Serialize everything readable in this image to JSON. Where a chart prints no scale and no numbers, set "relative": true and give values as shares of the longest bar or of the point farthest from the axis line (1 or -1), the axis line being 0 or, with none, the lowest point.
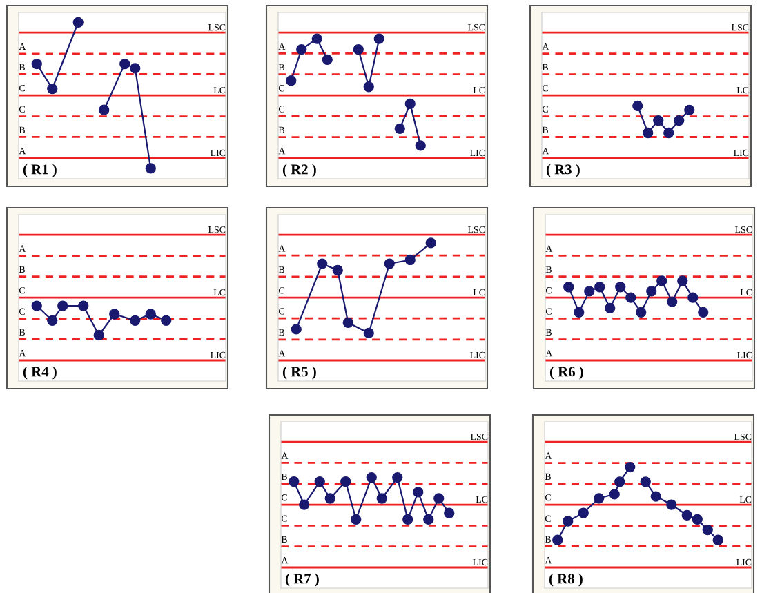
{
  "chart_data": [
    {
      "type": "line",
      "title": "( R1 )",
      "marker": "circle",
      "relative": true,
      "ref_lines": [
        {
          "axis": "y",
          "value": 0.86,
          "label": "LSC",
          "color": "#ee2222",
          "line_style": "solid"
        },
        {
          "axis": "y",
          "value": 0.57,
          "label": null,
          "color": "#ee2222",
          "line_style": "dashed"
        },
        {
          "axis": "y",
          "value": 0.29,
          "label": null,
          "color": "#ee2222",
          "line_style": "dashed"
        },
        {
          "axis": "y",
          "value": 0,
          "label": "LC",
          "color": "#ee2222",
          "line_style": "solid"
        },
        {
          "axis": "y",
          "value": -0.29,
          "label": null,
          "color": "#ee2222",
          "line_style": "dashed"
        },
        {
          "axis": "y",
          "value": -0.57,
          "label": null,
          "color": "#ee2222",
          "line_style": "dashed"
        },
        {
          "axis": "y",
          "value": -0.86,
          "label": "LIC",
          "color": "#ee2222",
          "line_style": "solid"
        }
      ],
      "annotations": [
        "A",
        "B",
        "C",
        "C",
        "B",
        "A"
      ],
      "categories": [
        null,
        null,
        null,
        null,
        null,
        null,
        null,
        null,
        null,
        null,
        null,
        null,
        null,
        null,
        null,
        null,
        null,
        null,
        null,
        null,
        null,
        null,
        null,
        null,
        null,
        null,
        null,
        null,
        null,
        null,
        null,
        null,
        null,
        null,
        null,
        null,
        null,
        null,
        null,
        null
      ],
      "series": [
        {
          "color": "#191970",
          "values": [
            null,
            null,
            null,
            0.43,
            null,
            null,
            0.09,
            null,
            null,
            null,
            null,
            1.0,
            null,
            null,
            null,
            null,
            null,
            null,
            null,
            null,
            null,
            null,
            null,
            null,
            null,
            null,
            null,
            null,
            null,
            null,
            null,
            null,
            null,
            null,
            null,
            null,
            null,
            null,
            null,
            null
          ]
        },
        {
          "color": "#191970",
          "values": [
            null,
            null,
            null,
            null,
            null,
            null,
            null,
            null,
            null,
            null,
            null,
            null,
            null,
            null,
            null,
            null,
            -0.2,
            null,
            null,
            null,
            0.43,
            null,
            0.37,
            null,
            null,
            -1.0,
            null,
            null,
            null,
            null,
            null,
            null,
            null,
            null,
            null,
            null,
            null,
            null,
            null,
            null
          ]
        }
      ]
    },
    {
      "type": "line",
      "title": "( R2 )",
      "marker": "circle",
      "relative": true,
      "ref_lines": [
        {
          "axis": "y",
          "value": 1.11,
          "label": "LSC",
          "color": "#ee2222",
          "line_style": "solid"
        },
        {
          "axis": "y",
          "value": 0.74,
          "label": null,
          "color": "#ee2222",
          "line_style": "dashed"
        },
        {
          "axis": "y",
          "value": 0.37,
          "label": null,
          "color": "#ee2222",
          "line_style": "dashed"
        },
        {
          "axis": "y",
          "value": 0,
          "label": "LC",
          "color": "#ee2222",
          "line_style": "solid"
        },
        {
          "axis": "y",
          "value": -0.37,
          "label": null,
          "color": "#ee2222",
          "line_style": "dashed"
        },
        {
          "axis": "y",
          "value": -0.74,
          "label": null,
          "color": "#ee2222",
          "line_style": "dashed"
        },
        {
          "axis": "y",
          "value": -1.11,
          "label": "LIC",
          "color": "#ee2222",
          "line_style": "solid"
        }
      ],
      "annotations": [
        "A",
        "B",
        "C",
        "C",
        "B",
        "A"
      ],
      "categories": [
        null,
        null,
        null,
        null,
        null,
        null,
        null,
        null,
        null,
        null,
        null,
        null,
        null,
        null,
        null,
        null,
        null,
        null,
        null,
        null,
        null,
        null,
        null,
        null,
        null,
        null,
        null,
        null,
        null,
        null,
        null,
        null,
        null,
        null,
        null,
        null,
        null,
        null,
        null,
        null
      ],
      "series": [
        {
          "color": "#191970",
          "values": [
            null,
            null,
            0.26,
            null,
            0.81,
            null,
            null,
            1.0,
            null,
            0.63,
            null,
            null,
            null,
            null,
            null,
            null,
            null,
            null,
            null,
            null,
            null,
            null,
            null,
            null,
            null,
            null,
            null,
            null,
            null,
            null,
            null,
            null,
            null,
            null,
            null,
            null,
            null,
            null,
            null,
            null
          ]
        },
        {
          "color": "#191970",
          "values": [
            null,
            null,
            null,
            null,
            null,
            null,
            null,
            null,
            null,
            null,
            null,
            null,
            null,
            null,
            null,
            0.81,
            null,
            0.15,
            null,
            1.0,
            null,
            null,
            null,
            null,
            null,
            null,
            null,
            null,
            null,
            null,
            null,
            null,
            null,
            null,
            null,
            null,
            null,
            null,
            null,
            null
          ]
        },
        {
          "color": "#191970",
          "values": [
            null,
            null,
            null,
            null,
            null,
            null,
            null,
            null,
            null,
            null,
            null,
            null,
            null,
            null,
            null,
            null,
            null,
            null,
            null,
            null,
            null,
            null,
            null,
            -0.59,
            null,
            -0.15,
            null,
            -0.89,
            null,
            null,
            null,
            null,
            null,
            null,
            null,
            null,
            null,
            null,
            null,
            null
          ]
        }
      ]
    },
    {
      "type": "line",
      "title": "( R3 )",
      "marker": "circle",
      "relative": true,
      "ref_lines": [
        {
          "axis": "y",
          "value": 1.67,
          "label": "LSC",
          "color": "#ee2222",
          "line_style": "solid"
        },
        {
          "axis": "y",
          "value": 1.11,
          "label": null,
          "color": "#ee2222",
          "line_style": "dashed"
        },
        {
          "axis": "y",
          "value": 0.56,
          "label": null,
          "color": "#ee2222",
          "line_style": "dashed"
        },
        {
          "axis": "y",
          "value": 0,
          "label": "LC",
          "color": "#ee2222",
          "line_style": "solid"
        },
        {
          "axis": "y",
          "value": -0.56,
          "label": null,
          "color": "#ee2222",
          "line_style": "dashed"
        },
        {
          "axis": "y",
          "value": -1.11,
          "label": null,
          "color": "#ee2222",
          "line_style": "dashed"
        },
        {
          "axis": "y",
          "value": -1.67,
          "label": "LIC",
          "color": "#ee2222",
          "line_style": "solid"
        }
      ],
      "annotations": [
        "A",
        "B",
        "C",
        "C",
        "B",
        "A"
      ],
      "categories": [
        null,
        null,
        null,
        null,
        null,
        null,
        null,
        null,
        null,
        null,
        null,
        null,
        null,
        null,
        null,
        null,
        null,
        null,
        null,
        null,
        null,
        null,
        null,
        null,
        null,
        null,
        null,
        null,
        null,
        null,
        null,
        null,
        null,
        null,
        null,
        null,
        null,
        null,
        null,
        null
      ],
      "series": [
        {
          "color": "#191970",
          "values": [
            null,
            null,
            null,
            null,
            null,
            null,
            null,
            null,
            null,
            null,
            null,
            null,
            null,
            null,
            null,
            null,
            null,
            null,
            -0.28,
            null,
            -1.0,
            null,
            -0.67,
            null,
            -1.0,
            null,
            -0.67,
            null,
            -0.39,
            null,
            null,
            null,
            null,
            null,
            null,
            null,
            null,
            null,
            null,
            null
          ]
        }
      ]
    },
    {
      "type": "line",
      "title": "( R4 )",
      "marker": "circle",
      "relative": true,
      "ref_lines": [
        {
          "axis": "y",
          "value": 1.67,
          "label": "LSC",
          "color": "#ee2222",
          "line_style": "solid"
        },
        {
          "axis": "y",
          "value": 1.11,
          "label": null,
          "color": "#ee2222",
          "line_style": "dashed"
        },
        {
          "axis": "y",
          "value": 0.56,
          "label": null,
          "color": "#ee2222",
          "line_style": "dashed"
        },
        {
          "axis": "y",
          "value": 0,
          "label": "LC",
          "color": "#ee2222",
          "line_style": "solid"
        },
        {
          "axis": "y",
          "value": -0.56,
          "label": null,
          "color": "#ee2222",
          "line_style": "dashed"
        },
        {
          "axis": "y",
          "value": -1.11,
          "label": null,
          "color": "#ee2222",
          "line_style": "dashed"
        },
        {
          "axis": "y",
          "value": -1.67,
          "label": "LIC",
          "color": "#ee2222",
          "line_style": "solid"
        }
      ],
      "annotations": [
        "A",
        "B",
        "C",
        "C",
        "B",
        "A"
      ],
      "categories": [
        null,
        null,
        null,
        null,
        null,
        null,
        null,
        null,
        null,
        null,
        null,
        null,
        null,
        null,
        null,
        null,
        null,
        null,
        null,
        null,
        null,
        null,
        null,
        null,
        null,
        null,
        null,
        null,
        null,
        null,
        null,
        null,
        null,
        null,
        null,
        null,
        null,
        null,
        null,
        null
      ],
      "series": [
        {
          "color": "#191970",
          "values": [
            null,
            null,
            null,
            -0.22,
            null,
            null,
            -0.61,
            null,
            -0.22,
            null,
            null,
            null,
            -0.22,
            null,
            null,
            -1.0,
            null,
            null,
            -0.44,
            null,
            null,
            null,
            -0.61,
            null,
            null,
            -0.44,
            null,
            null,
            -0.61,
            null,
            null,
            null,
            null,
            null,
            null,
            null,
            null,
            null,
            null,
            null
          ]
        }
      ]
    },
    {
      "type": "line",
      "title": "( R5 )",
      "marker": "circle",
      "relative": true,
      "ref_lines": [
        {
          "axis": "y",
          "value": 1.15,
          "label": "LSC",
          "color": "#ee2222",
          "line_style": "solid"
        },
        {
          "axis": "y",
          "value": 0.77,
          "label": null,
          "color": "#ee2222",
          "line_style": "dashed"
        },
        {
          "axis": "y",
          "value": 0.38,
          "label": null,
          "color": "#ee2222",
          "line_style": "dashed"
        },
        {
          "axis": "y",
          "value": 0,
          "label": "LC",
          "color": "#ee2222",
          "line_style": "solid"
        },
        {
          "axis": "y",
          "value": -0.38,
          "label": null,
          "color": "#ee2222",
          "line_style": "dashed"
        },
        {
          "axis": "y",
          "value": -0.77,
          "label": null,
          "color": "#ee2222",
          "line_style": "dashed"
        },
        {
          "axis": "y",
          "value": -1.15,
          "label": "LIC",
          "color": "#ee2222",
          "line_style": "solid"
        }
      ],
      "annotations": [
        "A",
        "B",
        "C",
        "C",
        "B",
        "A"
      ],
      "categories": [
        null,
        null,
        null,
        null,
        null,
        null,
        null,
        null,
        null,
        null,
        null,
        null,
        null,
        null,
        null,
        null,
        null,
        null,
        null,
        null,
        null,
        null,
        null,
        null,
        null,
        null,
        null,
        null,
        null,
        null,
        null,
        null,
        null,
        null,
        null,
        null,
        null,
        null,
        null,
        null
      ],
      "series": [
        {
          "color": "#191970",
          "values": [
            null,
            null,
            null,
            -0.58,
            null,
            null,
            null,
            null,
            0.62,
            null,
            null,
            0.5,
            null,
            -0.46,
            null,
            null,
            null,
            -0.65,
            null,
            null,
            null,
            0.62,
            null,
            null,
            null,
            0.69,
            null,
            null,
            null,
            1.0,
            null,
            null,
            null,
            null,
            null,
            null,
            null,
            null,
            null,
            null
          ]
        }
      ]
    },
    {
      "type": "line",
      "title": "( R6 )",
      "marker": "circle",
      "relative": true,
      "ref_lines": [
        {
          "axis": "y",
          "value": 3.75,
          "label": "LSC",
          "color": "#ee2222",
          "line_style": "solid"
        },
        {
          "axis": "y",
          "value": 2.5,
          "label": null,
          "color": "#ee2222",
          "line_style": "dashed"
        },
        {
          "axis": "y",
          "value": 1.25,
          "label": null,
          "color": "#ee2222",
          "line_style": "dashed"
        },
        {
          "axis": "y",
          "value": 0,
          "label": "LC",
          "color": "#ee2222",
          "line_style": "solid"
        },
        {
          "axis": "y",
          "value": -1.25,
          "label": null,
          "color": "#ee2222",
          "line_style": "dashed"
        },
        {
          "axis": "y",
          "value": -2.5,
          "label": null,
          "color": "#ee2222",
          "line_style": "dashed"
        },
        {
          "axis": "y",
          "value": -3.75,
          "label": "LIC",
          "color": "#ee2222",
          "line_style": "solid"
        }
      ],
      "annotations": [
        "A",
        "B",
        "C",
        "C",
        "B",
        "A"
      ],
      "categories": [
        null,
        null,
        null,
        null,
        null,
        null,
        null,
        null,
        null,
        null,
        null,
        null,
        null,
        null,
        null,
        null,
        null,
        null,
        null,
        null,
        null,
        null,
        null,
        null,
        null,
        null,
        null,
        null,
        null,
        null,
        null,
        null,
        null,
        null,
        null,
        null,
        null,
        null,
        null,
        null
      ],
      "series": [
        {
          "color": "#191970",
          "values": [
            null,
            null,
            null,
            null,
            0.63,
            null,
            -0.88,
            null,
            0.38,
            null,
            0.63,
            null,
            -0.63,
            null,
            0.63,
            null,
            0.0,
            null,
            -0.88,
            null,
            0.38,
            null,
            1.0,
            null,
            -0.25,
            null,
            1.0,
            null,
            0.0,
            null,
            -0.88,
            null,
            null,
            null,
            null,
            null,
            null,
            null,
            null,
            null
          ]
        }
      ]
    },
    {
      "type": "line",
      "title": "( R7 )",
      "marker": "circle",
      "relative": true,
      "ref_lines": [
        {
          "axis": "y",
          "value": 2.31,
          "label": "LSC",
          "color": "#ee2222",
          "line_style": "solid"
        },
        {
          "axis": "y",
          "value": 1.54,
          "label": null,
          "color": "#ee2222",
          "line_style": "dashed"
        },
        {
          "axis": "y",
          "value": 0.77,
          "label": null,
          "color": "#ee2222",
          "line_style": "dashed"
        },
        {
          "axis": "y",
          "value": 0,
          "label": "LC",
          "color": "#ee2222",
          "line_style": "solid"
        },
        {
          "axis": "y",
          "value": -0.77,
          "label": null,
          "color": "#ee2222",
          "line_style": "dashed"
        },
        {
          "axis": "y",
          "value": -1.54,
          "label": null,
          "color": "#ee2222",
          "line_style": "dashed"
        },
        {
          "axis": "y",
          "value": -2.31,
          "label": "LIC",
          "color": "#ee2222",
          "line_style": "solid"
        }
      ],
      "annotations": [
        "A",
        "B",
        "C",
        "C",
        "B",
        "A"
      ],
      "categories": [
        null,
        null,
        null,
        null,
        null,
        null,
        null,
        null,
        null,
        null,
        null,
        null,
        null,
        null,
        null,
        null,
        null,
        null,
        null,
        null,
        null,
        null,
        null,
        null,
        null,
        null,
        null,
        null,
        null,
        null,
        null,
        null,
        null,
        null,
        null,
        null,
        null,
        null,
        null,
        null
      ],
      "series": [
        {
          "color": "#191970",
          "values": [
            null,
            null,
            0.85,
            null,
            0.0,
            null,
            null,
            0.85,
            null,
            0.23,
            null,
            null,
            0.85,
            null,
            -0.54,
            null,
            null,
            1.0,
            null,
            0.23,
            null,
            null,
            1.0,
            null,
            -0.54,
            null,
            0.46,
            null,
            -0.54,
            null,
            0.23,
            null,
            -0.31,
            null,
            null,
            null,
            null,
            null,
            null,
            null
          ]
        }
      ]
    },
    {
      "type": "line",
      "title": "( R8 )",
      "marker": "circle",
      "relative": true,
      "ref_lines": [
        {
          "axis": "y",
          "value": 1.67,
          "label": "LSC",
          "color": "#ee2222",
          "line_style": "solid"
        },
        {
          "axis": "y",
          "value": 1.11,
          "label": null,
          "color": "#ee2222",
          "line_style": "dashed"
        },
        {
          "axis": "y",
          "value": 0.56,
          "label": null,
          "color": "#ee2222",
          "line_style": "dashed"
        },
        {
          "axis": "y",
          "value": 0,
          "label": "LC",
          "color": "#ee2222",
          "line_style": "solid"
        },
        {
          "axis": "y",
          "value": -0.56,
          "label": null,
          "color": "#ee2222",
          "line_style": "dashed"
        },
        {
          "axis": "y",
          "value": -1.11,
          "label": null,
          "color": "#ee2222",
          "line_style": "dashed"
        },
        {
          "axis": "y",
          "value": -1.67,
          "label": "LIC",
          "color": "#ee2222",
          "line_style": "solid"
        }
      ],
      "annotations": [
        "A",
        "B",
        "C",
        "C",
        "B",
        "A"
      ],
      "categories": [
        null,
        null,
        null,
        null,
        null,
        null,
        null,
        null,
        null,
        null,
        null,
        null,
        null,
        null,
        null,
        null,
        null,
        null,
        null,
        null,
        null,
        null,
        null,
        null,
        null,
        null,
        null,
        null,
        null,
        null,
        null,
        null,
        null,
        null,
        null,
        null,
        null,
        null,
        null,
        null
      ],
      "series": [
        {
          "color": "#191970",
          "values": [
            null,
            null,
            -0.94,
            null,
            -0.44,
            null,
            null,
            -0.22,
            null,
            null,
            0.17,
            null,
            null,
            0.28,
            0.61,
            null,
            1.0,
            null,
            null,
            null,
            null,
            null,
            null,
            null,
            null,
            null,
            null,
            null,
            null,
            null,
            null,
            null,
            null,
            null,
            null,
            null,
            null,
            null,
            null,
            null
          ]
        },
        {
          "color": "#191970",
          "values": [
            null,
            null,
            null,
            null,
            null,
            null,
            null,
            null,
            null,
            null,
            null,
            null,
            null,
            null,
            null,
            null,
            null,
            null,
            null,
            0.61,
            null,
            0.22,
            null,
            null,
            0.0,
            null,
            null,
            -0.28,
            null,
            -0.39,
            null,
            -0.67,
            null,
            -0.94,
            null,
            null,
            null,
            null,
            null,
            null
          ]
        }
      ]
    }
  ]
}
